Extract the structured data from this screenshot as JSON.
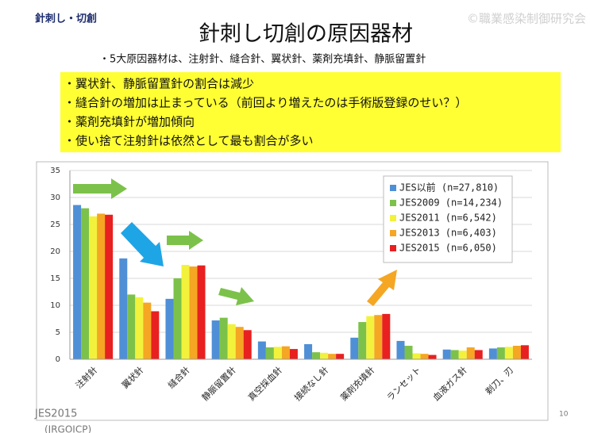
{
  "slide": {
    "label": "針刺し・切創",
    "watermark": "©職業感染制御研究会",
    "title": "針刺し切創の原因器材",
    "subtitle": "・5大原因器材は、注射針、縫合針、翼状針、薬剤充填針、静脈留置針",
    "bullets": [
      "・翼状針、静脈留置針の割合は減少",
      "・縫合針の増加は止まっている（前回より増えたのは手術版登録のせい？）",
      "・薬剤充填針が増加傾向",
      "・使い捨て注射針は依然として最も割合が多い"
    ],
    "footer": "JES2015",
    "footer_sub": "(JRGOICP)",
    "page_number": "10"
  },
  "chart_data": {
    "type": "bar",
    "categories": [
      "注射針",
      "翼状針",
      "縫合針",
      "静脈留置針",
      "真空採血針",
      "接続なし針",
      "薬剤充填針",
      "ランセット",
      "血液ガス針",
      "剃刀、刃"
    ],
    "series": [
      {
        "name": "JES以前 (n=27,810)",
        "color": "#4f8fd6",
        "values": [
          28.6,
          18.7,
          11.2,
          7.2,
          3.3,
          2.8,
          4.0,
          3.4,
          1.8,
          2.0
        ]
      },
      {
        "name": "JES2009 (n=14,234)",
        "color": "#7cc24a",
        "values": [
          28.0,
          12.0,
          15.0,
          7.7,
          2.2,
          1.3,
          6.9,
          2.5,
          1.7,
          2.2
        ]
      },
      {
        "name": "JES2011 (n=6,542)",
        "color": "#f2f23c",
        "values": [
          26.5,
          11.5,
          17.5,
          6.5,
          2.3,
          1.2,
          8.0,
          1.1,
          1.6,
          2.3
        ]
      },
      {
        "name": "JES2013 (n=6,403)",
        "color": "#f5a623",
        "values": [
          27.0,
          10.5,
          17.2,
          6.0,
          2.4,
          1.0,
          8.2,
          1.0,
          2.2,
          2.5
        ]
      },
      {
        "name": "JES2015 (n=6,050)",
        "color": "#e82020",
        "values": [
          26.8,
          8.9,
          17.4,
          5.4,
          1.9,
          1.0,
          8.4,
          0.8,
          1.7,
          2.6
        ]
      }
    ],
    "ylim": [
      0,
      35
    ],
    "yticks": [
      0,
      5,
      10,
      15,
      20,
      25,
      30,
      35
    ],
    "grid": true,
    "legend": "upper right"
  }
}
